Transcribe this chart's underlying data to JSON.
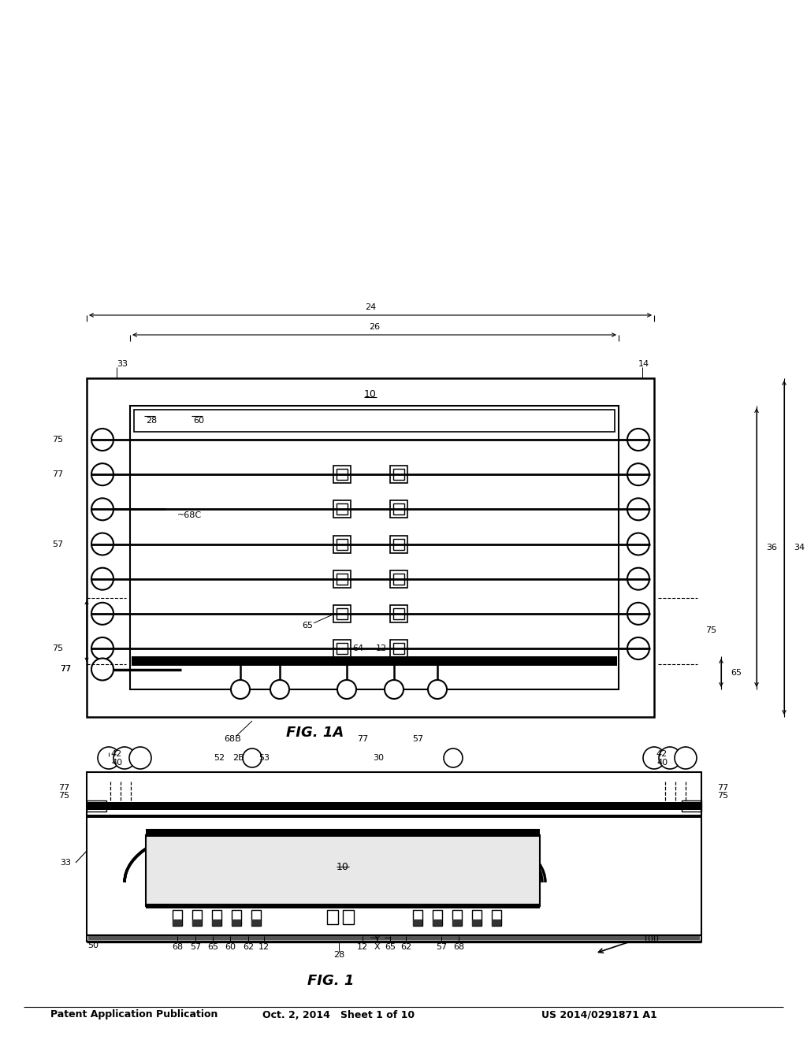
{
  "header_left": "Patent Application Publication",
  "header_mid": "Oct. 2, 2014   Sheet 1 of 10",
  "header_right": "US 2014/0291871 A1",
  "bg_color": "#ffffff"
}
